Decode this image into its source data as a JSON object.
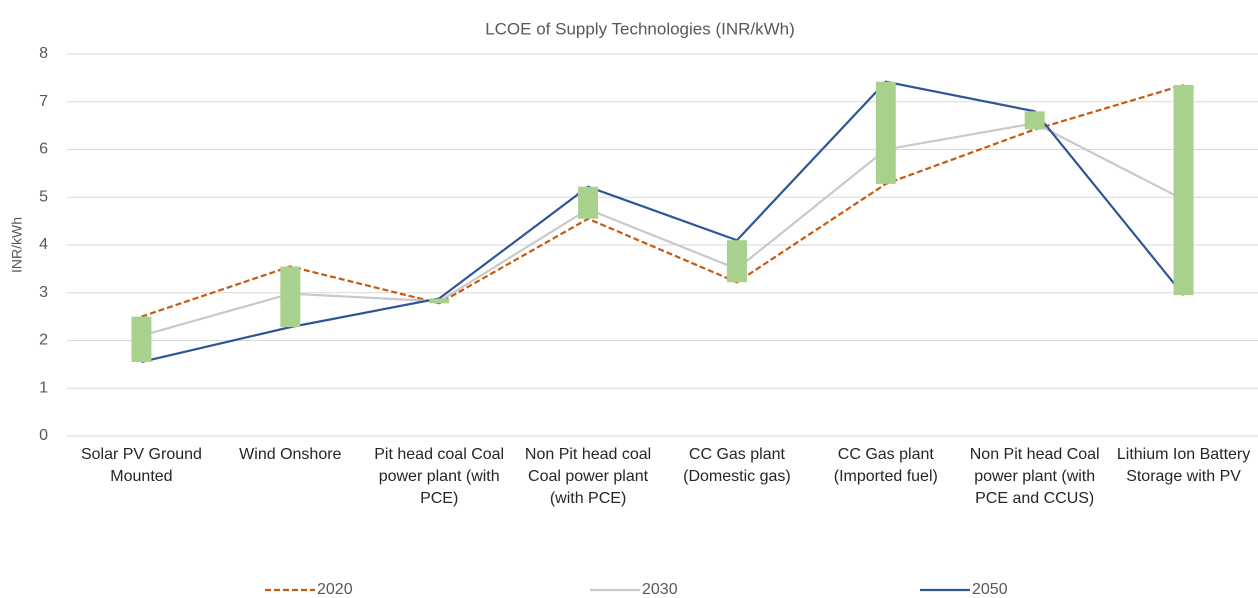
{
  "chart_data": {
    "type": "line",
    "title": "LCOE of Supply Technologies (INR/kWh)",
    "y_label": "INR/kWh",
    "categories": [
      "Solar PV Ground Mounted",
      "Wind Onshore",
      "Pit head coal Coal power plant (with PCE)",
      "Non Pit head coal Coal power plant (with PCE)",
      "CC Gas plant (Domestic gas)",
      "CC Gas plant (Imported fuel)",
      "Non Pit head Coal power plant (with PCE and CCUS)",
      "Lithium Ion Battery Storage with PV"
    ],
    "series": [
      {
        "name": "2020",
        "color": "#c55a11",
        "dashed": true,
        "values": [
          2.5,
          3.55,
          2.78,
          4.55,
          3.22,
          5.28,
          6.42,
          7.35
        ]
      },
      {
        "name": "2030",
        "color": "#c9c9c9",
        "dashed": false,
        "values": [
          2.1,
          2.98,
          2.82,
          4.75,
          3.5,
          6.0,
          6.55,
          4.95
        ]
      },
      {
        "name": "2050",
        "color": "#2f5597",
        "dashed": false,
        "values": [
          1.55,
          2.28,
          2.88,
          5.22,
          4.1,
          7.42,
          6.8,
          2.95
        ]
      }
    ],
    "high_low_bars": {
      "color": "#a9d18e"
    },
    "ylim": [
      0,
      8
    ],
    "yticks": [
      0,
      1,
      2,
      3,
      4,
      5,
      6,
      7,
      8
    ],
    "grid": true,
    "legend": "bottom"
  }
}
